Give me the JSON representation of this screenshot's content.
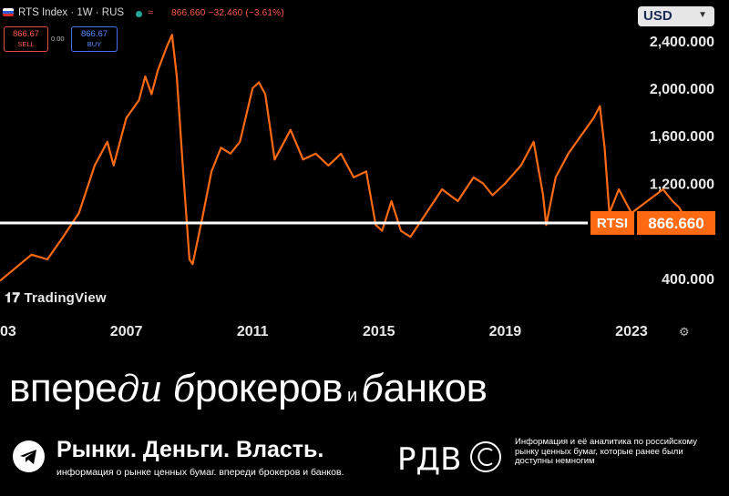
{
  "header": {
    "symbol": "RTS Index · 1W · RUS",
    "quote": "866.660  −32.460 (−3.61%)",
    "sell_price": "866.67",
    "sell_label": "SELL",
    "spread": "0.00",
    "buy_price": "866.67",
    "buy_label": "BUY",
    "currency": "USD",
    "flag_icon": "russia-flag-icon",
    "status_color": "#26a69a"
  },
  "price_tag": {
    "symbol": "RTSI",
    "value": "866.660",
    "color": "#ff6a13"
  },
  "chart_data": {
    "type": "line",
    "series": [
      {
        "name": "RTSI",
        "color": "#ff6a13",
        "x": [
          2003.0,
          2004.0,
          2004.5,
          2005.0,
          2005.5,
          2006.0,
          2006.4,
          2006.6,
          2007.0,
          2007.4,
          2007.6,
          2007.8,
          2008.0,
          2008.3,
          2008.45,
          2008.6,
          2008.8,
          2009.0,
          2009.1,
          2009.4,
          2009.7,
          2010.0,
          2010.3,
          2010.6,
          2011.0,
          2011.2,
          2011.4,
          2011.7,
          2011.9,
          2012.2,
          2012.6,
          2013.0,
          2013.4,
          2013.8,
          2014.2,
          2014.6,
          2014.9,
          2015.1,
          2015.4,
          2015.7,
          2016.0,
          2016.5,
          2017.0,
          2017.5,
          2018.0,
          2018.3,
          2018.6,
          2019.0,
          2019.5,
          2019.9,
          2020.2,
          2020.3,
          2020.6,
          2021.0,
          2021.4,
          2021.8,
          2022.0,
          2022.15,
          2022.3,
          2022.6,
          2023.0,
          2023.5,
          2024.0,
          2024.3,
          2024.5,
          2024.8
        ],
        "y": [
          380,
          600,
          560,
          750,
          950,
          1350,
          1550,
          1350,
          1750,
          1900,
          2100,
          1950,
          2150,
          2360,
          2450,
          2100,
          1300,
          560,
          520,
          900,
          1300,
          1500,
          1450,
          1550,
          2000,
          2050,
          1950,
          1400,
          1500,
          1650,
          1400,
          1450,
          1350,
          1450,
          1250,
          1300,
          850,
          800,
          1050,
          800,
          750,
          950,
          1150,
          1050,
          1250,
          1200,
          1100,
          1200,
          1350,
          1550,
          1100,
          850,
          1250,
          1450,
          1600,
          1750,
          1850,
          1500,
          950,
          1150,
          950,
          1050,
          1150,
          1050,
          1000,
          866.66
        ]
      }
    ],
    "x_ticks": [
      "03",
      "2007",
      "2011",
      "2015",
      "2019",
      "2023"
    ],
    "x_tick_values": [
      2003,
      2007,
      2011,
      2015,
      2019,
      2023
    ],
    "y_ticks": [
      "2,400.000",
      "2,000.000",
      "1,600.000",
      "1,200.000",
      "400.000"
    ],
    "y_tick_values": [
      2400,
      2000,
      1600,
      1200,
      400
    ],
    "xlim": [
      2003,
      2025.8
    ],
    "ylim": [
      200,
      2590
    ],
    "last_value": 866.66,
    "grid": false,
    "legend": "none"
  },
  "branding": {
    "tradingview": "TradingView",
    "tagline_1": "впере",
    "tagline_2": "ди",
    "tagline_3": " ",
    "tagline_4": "б",
    "tagline_5": "рокеров",
    "tagline_6": " и ",
    "tagline_7": "б",
    "tagline_8": "анков",
    "channel_name": "Рынки. Деньги. Власть.",
    "channel_subtitle": "информация о рынке ценных бумаг. впереди брокеров и банков.",
    "logo_text": "РДВ",
    "info_text": "Информация и её аналитика по российскому рынку ценных бумаг, которые ранее были доступны немногим"
  }
}
